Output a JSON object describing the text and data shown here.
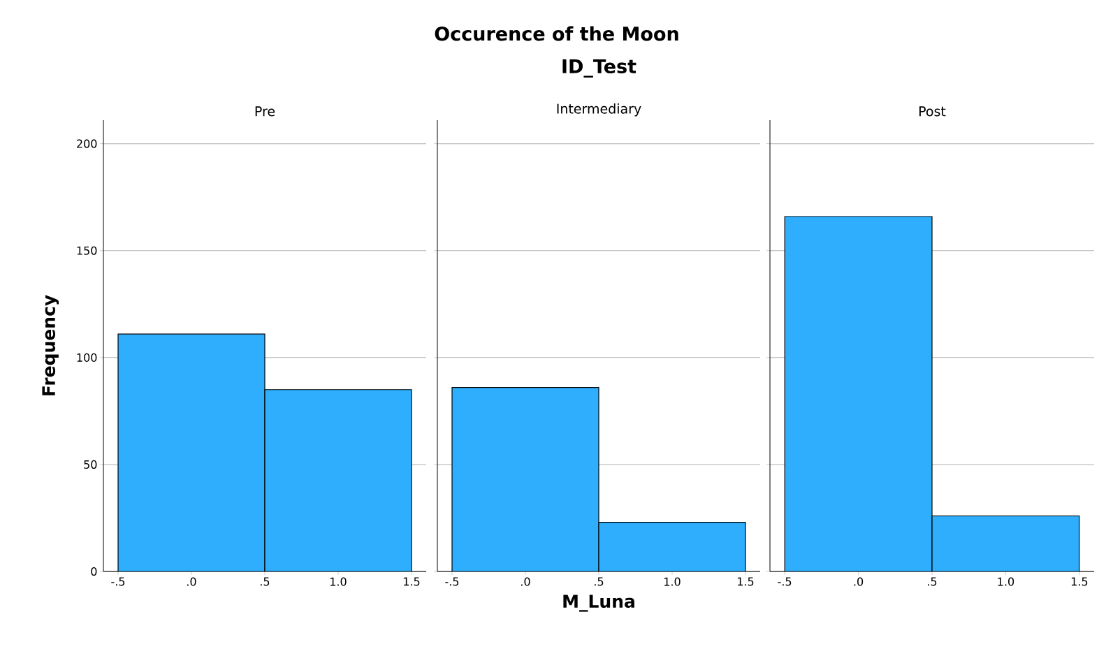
{
  "chart_data": [
    {
      "type": "histogram",
      "title": "Pre",
      "annotations": [
        "Occurence of the Moon",
        "ID_Test"
      ],
      "ylabel": "Frequency",
      "bins": [
        -0.5,
        0.5,
        1.5
      ],
      "values": [
        111,
        85
      ],
      "color": "#2eaefd",
      "xlim": [
        -0.6,
        1.6
      ],
      "ylim": [
        0,
        211
      ],
      "xticks": [
        {
          "value": -0.5,
          "label": "-.5"
        },
        {
          "value": 0,
          "label": ".0"
        },
        {
          "value": 0.5,
          "label": ".5"
        },
        {
          "value": 1,
          "label": "1.0"
        },
        {
          "value": 1.5,
          "label": "1.5"
        }
      ],
      "yticks": [
        0,
        50,
        100,
        150,
        200
      ],
      "grid": "y"
    },
    {
      "type": "histogram",
      "title": "Intermediary",
      "xlabel": "M_Luna",
      "bins": [
        -0.5,
        0.5,
        1.5
      ],
      "values": [
        86,
        23
      ],
      "color": "#2eaefd",
      "xlim": [
        -0.6,
        1.6
      ],
      "ylim": [
        0,
        211
      ],
      "xticks": [
        {
          "value": -0.5,
          "label": "-.5"
        },
        {
          "value": 0,
          "label": ".0"
        },
        {
          "value": 0.5,
          "label": ".5"
        },
        {
          "value": 1,
          "label": "1.0"
        },
        {
          "value": 1.5,
          "label": "1.5"
        }
      ],
      "yticks": [
        0,
        50,
        100,
        150,
        200
      ],
      "grid": "y",
      "tick_labels": "x"
    },
    {
      "type": "histogram",
      "title": "Post",
      "bins": [
        -0.5,
        0.5,
        1.5
      ],
      "values": [
        166,
        26
      ],
      "color": "#2eaefd",
      "xlim": [
        -0.6,
        1.6
      ],
      "ylim": [
        0,
        211
      ],
      "xticks": [
        {
          "value": -0.5,
          "label": "-.5"
        },
        {
          "value": 0,
          "label": ".0"
        },
        {
          "value": 0.5,
          "label": ".5"
        },
        {
          "value": 1,
          "label": "1.0"
        },
        {
          "value": 1.5,
          "label": "1.5"
        }
      ],
      "yticks": [
        0,
        50,
        100,
        150,
        200
      ],
      "grid": "y",
      "tick_labels": "x"
    }
  ]
}
